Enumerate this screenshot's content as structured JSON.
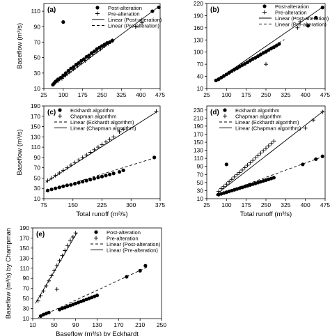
{
  "chart_data": [
    {
      "panel": "(a)",
      "type": "scatter",
      "ylabel": "Baseflow (m³/s)",
      "xlabel": "",
      "xlim": [
        25,
        475
      ],
      "ylim": [
        10,
        120
      ],
      "xticks": [
        25,
        100,
        175,
        250,
        325,
        400,
        475
      ],
      "yticks": [
        10,
        30,
        50,
        70,
        90,
        110
      ],
      "legend_position": "top-right",
      "series": [
        {
          "name": "Post-alteration",
          "marker": "dot",
          "x": [
            60,
            65,
            70,
            75,
            80,
            90,
            100,
            110,
            120,
            130,
            140,
            150,
            160,
            170,
            180,
            190,
            200,
            210,
            220,
            230,
            240,
            250,
            260,
            270,
            280,
            290,
            100,
            445,
            470
          ],
          "y": [
            15,
            17,
            19,
            20,
            22,
            24,
            27,
            30,
            33,
            36,
            38,
            41,
            43,
            46,
            48,
            51,
            53,
            56,
            58,
            61,
            63,
            65,
            67,
            69,
            70,
            72,
            96,
            110,
            115
          ]
        },
        {
          "name": "Pre-alteration",
          "marker": "plus",
          "x": [
            65,
            80,
            95,
            110,
            125,
            140,
            155,
            170,
            185,
            200,
            215,
            230,
            245,
            260,
            275,
            290,
            380,
            405
          ],
          "y": [
            16,
            20,
            23,
            27,
            31,
            35,
            39,
            43,
            46,
            50,
            54,
            58,
            61,
            65,
            68,
            72,
            90,
            95
          ]
        }
      ],
      "fits": [
        {
          "name": "Linear (Post-alteration)",
          "style": "solid",
          "x": [
            55,
            470
          ],
          "y": [
            13,
            116
          ]
        },
        {
          "name": "Linear (Pre-alteration)",
          "style": "dashed",
          "x": [
            60,
            300
          ],
          "y": [
            15,
            74
          ]
        }
      ]
    },
    {
      "panel": "(b)",
      "type": "scatter",
      "ylabel": "",
      "xlabel": "",
      "xlim": [
        25,
        475
      ],
      "ylim": [
        10,
        220
      ],
      "xticks": [
        25,
        100,
        175,
        250,
        325,
        400,
        475
      ],
      "yticks": [
        10,
        40,
        70,
        100,
        130,
        160,
        190,
        220
      ],
      "legend_position": "top-right",
      "series": [
        {
          "name": "Post-alteration",
          "marker": "dot",
          "x": [
            60,
            70,
            80,
            90,
            100,
            110,
            120,
            130,
            140,
            150,
            160,
            170,
            180,
            190,
            200,
            210,
            220,
            230,
            240,
            250,
            260,
            270,
            280,
            290,
            300,
            410,
            440,
            465
          ],
          "y": [
            30,
            33,
            37,
            41,
            45,
            49,
            53,
            57,
            60,
            64,
            68,
            71,
            75,
            79,
            83,
            86,
            90,
            94,
            98,
            101,
            105,
            109,
            112,
            116,
            120,
            165,
            185,
            210
          ]
        },
        {
          "name": "Pre-alteration",
          "marker": "plus",
          "x": [
            70,
            90,
            110,
            130,
            150,
            170,
            190,
            210,
            230,
            250,
            270,
            290,
            250,
            370,
            380
          ],
          "y": [
            33,
            41,
            49,
            56,
            64,
            71,
            79,
            86,
            94,
            101,
            109,
            116,
            70,
            160,
            175
          ]
        }
      ],
      "fits": [
        {
          "name": "Linear (Post-alteration)",
          "style": "solid",
          "x": [
            55,
            470
          ],
          "y": [
            27,
            213
          ]
        },
        {
          "name": "Linear (Pre-alteration)",
          "style": "dashed",
          "x": [
            60,
            320
          ],
          "y": [
            29,
            131
          ]
        }
      ]
    },
    {
      "panel": "(c)",
      "type": "scatter",
      "ylabel": "Baseflow (m³/s)",
      "xlabel": "Total runoff (m³/s)",
      "xlim": [
        75,
        375
      ],
      "ylim": [
        10,
        190
      ],
      "xticks": [
        75,
        150,
        225,
        300,
        375
      ],
      "yticks": [
        10,
        30,
        50,
        70,
        90,
        110,
        130,
        150,
        170,
        190
      ],
      "legend_position": "top-left",
      "series": [
        {
          "name": "Eckhardt algorithm",
          "marker": "dot",
          "x": [
            85,
            95,
            105,
            115,
            125,
            135,
            145,
            155,
            165,
            175,
            185,
            195,
            205,
            215,
            225,
            235,
            245,
            255,
            270,
            280,
            360
          ],
          "y": [
            26,
            28,
            30,
            32,
            34,
            36,
            37,
            39,
            41,
            43,
            45,
            47,
            49,
            51,
            53,
            55,
            57,
            59,
            62,
            65,
            90
          ]
        },
        {
          "name": "Chapman algorithm",
          "marker": "plus",
          "x": [
            85,
            95,
            105,
            115,
            125,
            135,
            145,
            155,
            165,
            175,
            185,
            195,
            205,
            215,
            225,
            235,
            245,
            255,
            270,
            280,
            365
          ],
          "y": [
            45,
            50,
            55,
            60,
            65,
            70,
            75,
            80,
            85,
            90,
            95,
            100,
            105,
            110,
            115,
            120,
            125,
            130,
            140,
            145,
            180
          ]
        }
      ],
      "fits": [
        {
          "name": "Linear (Eckhardt algorithm)",
          "style": "dashed",
          "x": [
            80,
            365
          ],
          "y": [
            24,
            90
          ]
        },
        {
          "name": "Linear (Chapman algorithm)",
          "style": "solid",
          "x": [
            80,
            365
          ],
          "y": [
            42,
            178
          ]
        }
      ]
    },
    {
      "panel": "(d)",
      "type": "scatter",
      "ylabel": "",
      "xlabel": "Total runoff (m³/s)",
      "xlim": [
        25,
        475
      ],
      "ylim": [
        10,
        240
      ],
      "xticks": [
        25,
        100,
        175,
        250,
        325,
        400,
        475
      ],
      "yticks": [
        10,
        30,
        50,
        70,
        90,
        110,
        130,
        150,
        170,
        190,
        210,
        230
      ],
      "legend_position": "top-left",
      "series": [
        {
          "name": "Eckhardt algorithm",
          "marker": "dot",
          "x": [
            70,
            80,
            90,
            100,
            110,
            120,
            130,
            140,
            150,
            160,
            170,
            180,
            190,
            200,
            210,
            220,
            230,
            240,
            250,
            260,
            270,
            280,
            100,
            390,
            440,
            465
          ],
          "y": [
            20,
            22,
            24,
            26,
            28,
            30,
            32,
            34,
            36,
            38,
            40,
            42,
            44,
            46,
            48,
            50,
            52,
            54,
            56,
            58,
            60,
            62,
            95,
            95,
            108,
            115
          ]
        },
        {
          "name": "Chapman algorithm",
          "marker": "plus",
          "x": [
            70,
            80,
            90,
            100,
            110,
            120,
            130,
            140,
            150,
            160,
            170,
            180,
            190,
            200,
            210,
            220,
            230,
            240,
            250,
            260,
            270,
            280,
            400,
            430,
            465
          ],
          "y": [
            28,
            35,
            40,
            46,
            52,
            58,
            64,
            70,
            75,
            81,
            87,
            93,
            99,
            105,
            111,
            117,
            123,
            129,
            135,
            141,
            147,
            153,
            185,
            205,
            225
          ]
        }
      ],
      "fits": [
        {
          "name": "Linear (Eckhardt algorithm)",
          "style": "dashed",
          "x": [
            60,
            470
          ],
          "y": [
            18,
            115
          ]
        },
        {
          "name": "Linear (Chapman algorithm)",
          "style": "solid",
          "x": [
            60,
            470
          ],
          "y": [
            20,
            228
          ]
        }
      ]
    },
    {
      "panel": "(e)",
      "type": "scatter",
      "ylabel": "Baseflow (m³/s) by Champman",
      "xlabel": "Baseflow (m³/s) by Eckhardt",
      "xlim": [
        10,
        250
      ],
      "ylim": [
        10,
        190
      ],
      "xticks": [
        10,
        50,
        90,
        130,
        170,
        210,
        250
      ],
      "yticks": [
        10,
        30,
        50,
        70,
        90,
        110,
        130,
        150,
        170,
        190
      ],
      "legend_position": "top-right",
      "series": [
        {
          "name": "Post-alteration",
          "marker": "dot",
          "x": [
            25,
            30,
            35,
            40,
            60,
            65,
            70,
            75,
            80,
            85,
            90,
            95,
            100,
            105,
            110,
            115,
            120,
            125,
            130,
            185,
            210,
            220
          ],
          "y": [
            15,
            18,
            20,
            22,
            28,
            30,
            32,
            34,
            36,
            38,
            40,
            42,
            44,
            46,
            48,
            50,
            52,
            54,
            56,
            93,
            105,
            115
          ]
        },
        {
          "name": "Pre-alteration",
          "marker": "plus",
          "x": [
            20,
            25,
            30,
            35,
            40,
            45,
            50,
            55,
            60,
            65,
            70,
            75,
            80,
            85,
            90,
            55
          ],
          "y": [
            45,
            55,
            65,
            75,
            85,
            95,
            105,
            115,
            125,
            135,
            145,
            155,
            165,
            172,
            180,
            68
          ]
        }
      ],
      "fits": [
        {
          "name": "Linear (Post-alteration)",
          "style": "dashed",
          "x": [
            20,
            225
          ],
          "y": [
            12,
            113
          ]
        },
        {
          "name": "Linear (Pre-alteration)",
          "style": "solid",
          "x": [
            15,
            92
          ],
          "y": [
            40,
            180
          ]
        }
      ]
    }
  ]
}
